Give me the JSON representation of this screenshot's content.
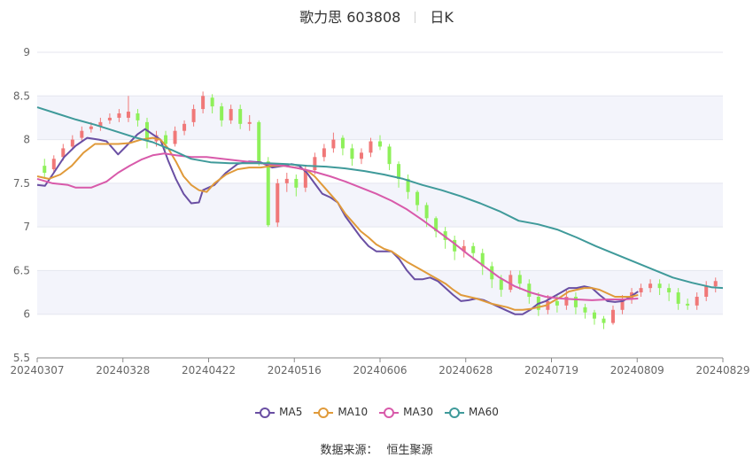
{
  "title": {
    "name": "歌力思 603808",
    "period": "日K"
  },
  "source": {
    "label": "数据来源：",
    "provider": "恒生聚源"
  },
  "chart_data": {
    "type": "candlestick",
    "ylim": [
      5.5,
      9
    ],
    "yticks": [
      "9",
      "8.5",
      "8",
      "7.5",
      "7",
      "6.5",
      "6",
      "5.5"
    ],
    "ytick_values": [
      9,
      8.5,
      8,
      7.5,
      7,
      6.5,
      6,
      5.5
    ],
    "xticks": [
      "20240307",
      "20240328",
      "20240422",
      "20240516",
      "20240606",
      "20240628",
      "20240719",
      "20240809",
      "20240829"
    ],
    "grid": true,
    "legend_position": "bottom",
    "colors": {
      "up": "#f07878",
      "down": "#8ef05a",
      "grid_band": "#f3f4fb",
      "axis": "#888888"
    },
    "series": [
      {
        "name": "MA5",
        "color": "#6a4fa3",
        "points": [
          [
            0,
            7.48
          ],
          [
            2,
            7.47
          ],
          [
            4,
            7.6
          ],
          [
            7,
            7.8
          ],
          [
            10,
            7.93
          ],
          [
            13,
            8.02
          ],
          [
            16,
            8.0
          ],
          [
            18,
            7.98
          ],
          [
            21,
            7.83
          ],
          [
            23,
            7.92
          ],
          [
            26,
            8.06
          ],
          [
            28,
            8.12
          ],
          [
            30,
            8.06
          ],
          [
            32,
            8.0
          ],
          [
            34,
            7.76
          ],
          [
            36,
            7.55
          ],
          [
            38,
            7.38
          ],
          [
            40,
            7.27
          ],
          [
            42,
            7.28
          ],
          [
            43,
            7.42
          ],
          [
            46,
            7.48
          ],
          [
            49,
            7.62
          ],
          [
            52,
            7.72
          ],
          [
            55,
            7.75
          ],
          [
            58,
            7.74
          ],
          [
            61,
            7.68
          ],
          [
            64,
            7.7
          ],
          [
            66,
            7.72
          ],
          [
            68,
            7.7
          ],
          [
            70,
            7.62
          ],
          [
            72,
            7.5
          ],
          [
            74,
            7.38
          ],
          [
            76,
            7.34
          ],
          [
            78,
            7.28
          ],
          [
            80,
            7.12
          ],
          [
            82,
            7.0
          ],
          [
            84,
            6.88
          ],
          [
            86,
            6.78
          ],
          [
            88,
            6.72
          ],
          [
            90,
            6.72
          ],
          [
            92,
            6.72
          ],
          [
            94,
            6.63
          ],
          [
            96,
            6.5
          ],
          [
            98,
            6.4
          ],
          [
            100,
            6.4
          ],
          [
            102,
            6.42
          ],
          [
            104,
            6.38
          ],
          [
            106,
            6.3
          ],
          [
            108,
            6.22
          ],
          [
            110,
            6.15
          ],
          [
            112,
            6.16
          ],
          [
            114,
            6.18
          ],
          [
            116,
            6.16
          ],
          [
            118,
            6.12
          ],
          [
            120,
            6.08
          ],
          [
            122,
            6.04
          ],
          [
            124,
            6.0
          ],
          [
            126,
            6.0
          ],
          [
            128,
            6.05
          ],
          [
            130,
            6.12
          ],
          [
            132,
            6.15
          ],
          [
            134,
            6.2
          ],
          [
            136,
            6.25
          ],
          [
            138,
            6.3
          ],
          [
            140,
            6.3
          ],
          [
            142,
            6.32
          ],
          [
            144,
            6.3
          ],
          [
            146,
            6.22
          ],
          [
            148,
            6.15
          ],
          [
            150,
            6.14
          ],
          [
            152,
            6.15
          ],
          [
            154,
            6.2
          ],
          [
            156,
            6.26
          ]
        ]
      },
      {
        "name": "MA10",
        "color": "#e09a3a",
        "points": [
          [
            0,
            7.58
          ],
          [
            3,
            7.55
          ],
          [
            6,
            7.6
          ],
          [
            9,
            7.7
          ],
          [
            12,
            7.85
          ],
          [
            15,
            7.95
          ],
          [
            18,
            7.95
          ],
          [
            21,
            7.95
          ],
          [
            24,
            7.96
          ],
          [
            27,
            8.0
          ],
          [
            30,
            8.02
          ],
          [
            32,
            8.0
          ],
          [
            34,
            7.9
          ],
          [
            36,
            7.75
          ],
          [
            38,
            7.58
          ],
          [
            40,
            7.48
          ],
          [
            42,
            7.42
          ],
          [
            44,
            7.4
          ],
          [
            46,
            7.5
          ],
          [
            49,
            7.6
          ],
          [
            52,
            7.66
          ],
          [
            55,
            7.68
          ],
          [
            58,
            7.68
          ],
          [
            61,
            7.7
          ],
          [
            64,
            7.7
          ],
          [
            67,
            7.68
          ],
          [
            70,
            7.65
          ],
          [
            72,
            7.58
          ],
          [
            74,
            7.48
          ],
          [
            76,
            7.38
          ],
          [
            78,
            7.28
          ],
          [
            80,
            7.15
          ],
          [
            82,
            7.05
          ],
          [
            84,
            6.95
          ],
          [
            86,
            6.88
          ],
          [
            88,
            6.8
          ],
          [
            90,
            6.75
          ],
          [
            92,
            6.72
          ],
          [
            94,
            6.66
          ],
          [
            96,
            6.6
          ],
          [
            98,
            6.55
          ],
          [
            100,
            6.5
          ],
          [
            102,
            6.45
          ],
          [
            104,
            6.4
          ],
          [
            106,
            6.35
          ],
          [
            108,
            6.28
          ],
          [
            110,
            6.22
          ],
          [
            112,
            6.2
          ],
          [
            114,
            6.18
          ],
          [
            116,
            6.15
          ],
          [
            118,
            6.12
          ],
          [
            120,
            6.1
          ],
          [
            122,
            6.08
          ],
          [
            124,
            6.05
          ],
          [
            126,
            6.05
          ],
          [
            128,
            6.06
          ],
          [
            130,
            6.08
          ],
          [
            132,
            6.1
          ],
          [
            134,
            6.15
          ],
          [
            136,
            6.2
          ],
          [
            138,
            6.26
          ],
          [
            140,
            6.28
          ],
          [
            142,
            6.3
          ],
          [
            144,
            6.3
          ],
          [
            146,
            6.28
          ],
          [
            148,
            6.24
          ],
          [
            150,
            6.2
          ],
          [
            152,
            6.2
          ],
          [
            154,
            6.2
          ],
          [
            156,
            6.22
          ]
        ]
      },
      {
        "name": "MA30",
        "color": "#d85aaa",
        "points": [
          [
            0,
            7.55
          ],
          [
            4,
            7.5
          ],
          [
            8,
            7.48
          ],
          [
            10,
            7.45
          ],
          [
            14,
            7.45
          ],
          [
            18,
            7.52
          ],
          [
            21,
            7.62
          ],
          [
            24,
            7.7
          ],
          [
            27,
            7.77
          ],
          [
            30,
            7.82
          ],
          [
            33,
            7.84
          ],
          [
            36,
            7.82
          ],
          [
            40,
            7.8
          ],
          [
            44,
            7.8
          ],
          [
            48,
            7.78
          ],
          [
            52,
            7.76
          ],
          [
            56,
            7.74
          ],
          [
            60,
            7.72
          ],
          [
            64,
            7.7
          ],
          [
            68,
            7.67
          ],
          [
            72,
            7.63
          ],
          [
            76,
            7.58
          ],
          [
            80,
            7.52
          ],
          [
            84,
            7.45
          ],
          [
            88,
            7.38
          ],
          [
            92,
            7.3
          ],
          [
            96,
            7.2
          ],
          [
            100,
            7.08
          ],
          [
            104,
            6.95
          ],
          [
            108,
            6.82
          ],
          [
            112,
            6.68
          ],
          [
            116,
            6.55
          ],
          [
            120,
            6.42
          ],
          [
            124,
            6.32
          ],
          [
            128,
            6.25
          ],
          [
            132,
            6.2
          ],
          [
            136,
            6.18
          ],
          [
            140,
            6.17
          ],
          [
            144,
            6.16
          ],
          [
            148,
            6.17
          ],
          [
            152,
            6.17
          ],
          [
            156,
            6.18
          ]
        ]
      },
      {
        "name": "MA60",
        "color": "#3f9a9a",
        "points": [
          [
            0,
            8.37
          ],
          [
            5,
            8.3
          ],
          [
            10,
            8.23
          ],
          [
            15,
            8.17
          ],
          [
            20,
            8.1
          ],
          [
            25,
            8.03
          ],
          [
            30,
            7.97
          ],
          [
            35,
            7.88
          ],
          [
            40,
            7.78
          ],
          [
            45,
            7.74
          ],
          [
            50,
            7.73
          ],
          [
            55,
            7.73
          ],
          [
            60,
            7.73
          ],
          [
            65,
            7.72
          ],
          [
            70,
            7.7
          ],
          [
            75,
            7.69
          ],
          [
            80,
            7.67
          ],
          [
            85,
            7.64
          ],
          [
            90,
            7.6
          ],
          [
            95,
            7.55
          ],
          [
            100,
            7.48
          ],
          [
            105,
            7.42
          ],
          [
            110,
            7.35
          ],
          [
            115,
            7.27
          ],
          [
            120,
            7.18
          ],
          [
            125,
            7.07
          ],
          [
            130,
            7.03
          ],
          [
            135,
            6.97
          ],
          [
            140,
            6.88
          ],
          [
            145,
            6.78
          ],
          [
            150,
            6.69
          ],
          [
            155,
            6.6
          ],
          [
            160,
            6.51
          ],
          [
            165,
            6.42
          ],
          [
            170,
            6.36
          ],
          [
            175,
            6.31
          ],
          [
            178,
            6.3
          ]
        ]
      }
    ],
    "candles": [
      [
        7.7,
        7.62,
        7.78,
        7.55
      ],
      [
        7.66,
        7.78,
        7.82,
        7.62
      ],
      [
        7.8,
        7.9,
        7.95,
        7.76
      ],
      [
        7.92,
        8.0,
        8.05,
        7.88
      ],
      [
        8.02,
        8.1,
        8.15,
        7.98
      ],
      [
        8.12,
        8.15,
        8.2,
        8.08
      ],
      [
        8.15,
        8.2,
        8.25,
        8.1
      ],
      [
        8.22,
        8.25,
        8.3,
        8.18
      ],
      [
        8.25,
        8.3,
        8.35,
        8.2
      ],
      [
        8.25,
        8.32,
        8.5,
        8.2
      ],
      [
        8.3,
        8.22,
        8.35,
        8.15
      ],
      [
        8.2,
        7.98,
        8.25,
        7.9
      ],
      [
        7.98,
        8.05,
        8.1,
        7.92
      ],
      [
        8.05,
        7.95,
        8.1,
        7.88
      ],
      [
        7.95,
        8.1,
        8.15,
        7.92
      ],
      [
        8.1,
        8.18,
        8.22,
        8.05
      ],
      [
        8.2,
        8.35,
        8.4,
        8.15
      ],
      [
        8.35,
        8.5,
        8.55,
        8.3
      ],
      [
        8.48,
        8.38,
        8.52,
        8.3
      ],
      [
        8.38,
        8.22,
        8.42,
        8.15
      ],
      [
        8.22,
        8.35,
        8.4,
        8.18
      ],
      [
        8.35,
        8.18,
        8.4,
        8.12
      ],
      [
        8.18,
        8.2,
        8.28,
        8.1
      ],
      [
        8.2,
        7.75,
        8.22,
        7.7
      ],
      [
        7.75,
        7.02,
        7.8,
        7.0
      ],
      [
        7.05,
        7.5,
        7.55,
        7.0
      ],
      [
        7.5,
        7.55,
        7.62,
        7.4
      ],
      [
        7.55,
        7.45,
        7.6,
        7.35
      ],
      [
        7.45,
        7.65,
        7.7,
        7.4
      ],
      [
        7.65,
        7.8,
        7.85,
        7.6
      ],
      [
        7.8,
        7.9,
        7.95,
        7.75
      ],
      [
        7.9,
        8.0,
        8.08,
        7.85
      ],
      [
        8.02,
        7.9,
        8.05,
        7.82
      ],
      [
        7.9,
        7.78,
        7.95,
        7.7
      ],
      [
        7.78,
        7.85,
        7.9,
        7.72
      ],
      [
        7.85,
        7.98,
        8.02,
        7.8
      ],
      [
        7.98,
        7.92,
        8.05,
        7.88
      ],
      [
        7.92,
        7.72,
        7.95,
        7.65
      ],
      [
        7.72,
        7.55,
        7.75,
        7.45
      ],
      [
        7.55,
        7.4,
        7.6,
        7.32
      ],
      [
        7.4,
        7.25,
        7.42,
        7.18
      ],
      [
        7.25,
        7.1,
        7.28,
        7.0
      ],
      [
        7.1,
        6.95,
        7.12,
        6.88
      ],
      [
        6.95,
        6.85,
        7.0,
        6.75
      ],
      [
        6.85,
        6.72,
        6.9,
        6.62
      ],
      [
        6.72,
        6.78,
        6.85,
        6.65
      ],
      [
        6.78,
        6.7,
        6.82,
        6.62
      ],
      [
        6.7,
        6.55,
        6.75,
        6.45
      ],
      [
        6.55,
        6.4,
        6.6,
        6.3
      ],
      [
        6.4,
        6.28,
        6.45,
        6.2
      ],
      [
        6.28,
        6.45,
        6.5,
        6.25
      ],
      [
        6.45,
        6.35,
        6.5,
        6.28
      ],
      [
        6.35,
        6.2,
        6.4,
        6.12
      ],
      [
        6.2,
        6.05,
        6.25,
        5.98
      ],
      [
        6.05,
        6.15,
        6.22,
        6.0
      ],
      [
        6.15,
        6.1,
        6.22,
        6.02
      ],
      [
        6.1,
        6.2,
        6.28,
        6.05
      ],
      [
        6.2,
        6.08,
        6.25,
        6.0
      ],
      [
        6.08,
        6.02,
        6.12,
        5.95
      ],
      [
        6.02,
        5.95,
        6.05,
        5.88
      ],
      [
        5.95,
        5.9,
        5.98,
        5.83
      ],
      [
        5.9,
        6.05,
        6.1,
        5.88
      ],
      [
        6.05,
        6.18,
        6.22,
        6.0
      ],
      [
        6.18,
        6.25,
        6.3,
        6.12
      ],
      [
        6.25,
        6.3,
        6.35,
        6.2
      ],
      [
        6.3,
        6.35,
        6.4,
        6.25
      ],
      [
        6.35,
        6.3,
        6.4,
        6.22
      ],
      [
        6.3,
        6.25,
        6.35,
        6.15
      ],
      [
        6.25,
        6.12,
        6.3,
        6.05
      ],
      [
        6.12,
        6.1,
        6.18,
        6.05
      ],
      [
        6.1,
        6.2,
        6.25,
        6.05
      ],
      [
        6.2,
        6.32,
        6.38,
        6.15
      ],
      [
        6.32,
        6.38,
        6.42,
        6.25
      ]
    ]
  }
}
